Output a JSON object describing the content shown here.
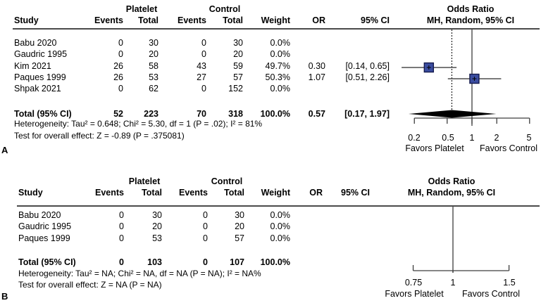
{
  "figure": {
    "panel_a_label": "A",
    "panel_b_label": "B"
  },
  "chart_data": [
    {
      "type": "forest",
      "panel": "A",
      "scale": "log",
      "effect_measure": "Odds Ratio",
      "header": {
        "group_treatment": "Platelet",
        "group_control": "Control",
        "study": "Study",
        "events": "Events",
        "total": "Total",
        "events2": "Events",
        "total2": "Total",
        "weight": "Weight",
        "or": "OR",
        "ci": "95% CI",
        "effect_line1": "Odds Ratio",
        "effect_line2": "MH, Random, 95% CI"
      },
      "rows": [
        {
          "study": "Babu 2020",
          "events_platelet": "0",
          "total_platelet": "30",
          "events_control": "0",
          "total_control": "30",
          "weight": "0.0%",
          "or_text": "",
          "ci_text": "",
          "or": null,
          "ci_low": null,
          "ci_high": null
        },
        {
          "study": "Gaudric 1995",
          "events_platelet": "0",
          "total_platelet": "20",
          "events_control": "0",
          "total_control": "20",
          "weight": "0.0%",
          "or_text": "",
          "ci_text": "",
          "or": null,
          "ci_low": null,
          "ci_high": null
        },
        {
          "study": "Kim 2021",
          "events_platelet": "26",
          "total_platelet": "58",
          "events_control": "43",
          "total_control": "59",
          "weight": "49.7%",
          "or_text": "0.30",
          "ci_text": "[0.14, 0.65]",
          "or": 0.3,
          "ci_low": 0.14,
          "ci_high": 0.65
        },
        {
          "study": "Paques 1999",
          "events_platelet": "26",
          "total_platelet": "53",
          "events_control": "27",
          "total_control": "57",
          "weight": "50.3%",
          "or_text": "1.07",
          "ci_text": "[0.51, 2.26]",
          "or": 1.07,
          "ci_low": 0.51,
          "ci_high": 2.26
        },
        {
          "study": "Shpak 2021",
          "events_platelet": "0",
          "total_platelet": "62",
          "events_control": "0",
          "total_control": "152",
          "weight": "0.0%",
          "or_text": "",
          "ci_text": "",
          "or": null,
          "ci_low": null,
          "ci_high": null
        }
      ],
      "total": {
        "study": "Total (95% CI)",
        "events_platelet": "52",
        "total_platelet": "223",
        "events_control": "70",
        "total_control": "318",
        "weight": "100.0%",
        "or_text": "0.57",
        "ci_text": "[0.17, 1.97]",
        "or": 0.57,
        "ci_low": 0.17,
        "ci_high": 1.97
      },
      "heterogeneity": "Heterogeneity: Tau² = 0.648; Chi² = 5.30, df = 1 (P = .02); I² = 81%",
      "overall_effect": "Test for overall effect: Z = -0.89 (P = .375081)",
      "axis": {
        "ticks": [
          "0.2",
          "0.5",
          "1",
          "2",
          "5"
        ],
        "tick_values": [
          0.2,
          0.5,
          1,
          2,
          5
        ],
        "null_line": 1,
        "pooled_dashed": 0.57,
        "favors_left": "Favors Platelet",
        "favors_right": "Favors Control"
      }
    },
    {
      "type": "forest",
      "panel": "B",
      "scale": "log",
      "effect_measure": "Odds Ratio",
      "header": {
        "group_treatment": "Platelet",
        "group_control": "Control",
        "study": "Study",
        "events": "Events",
        "total": "Total",
        "events2": "Events",
        "total2": "Total",
        "weight": "Weight",
        "or": "OR",
        "ci": "95% CI",
        "effect_line1": "Odds Ratio",
        "effect_line2": "MH, Random, 95% CI"
      },
      "rows": [
        {
          "study": "Babu 2020",
          "events_platelet": "0",
          "total_platelet": "30",
          "events_control": "0",
          "total_control": "30",
          "weight": "0.0%",
          "or_text": "",
          "ci_text": "",
          "or": null,
          "ci_low": null,
          "ci_high": null
        },
        {
          "study": "Gaudric 1995",
          "events_platelet": "0",
          "total_platelet": "20",
          "events_control": "0",
          "total_control": "20",
          "weight": "0.0%",
          "or_text": "",
          "ci_text": "",
          "or": null,
          "ci_low": null,
          "ci_high": null
        },
        {
          "study": "Paques 1999",
          "events_platelet": "0",
          "total_platelet": "53",
          "events_control": "0",
          "total_control": "57",
          "weight": "0.0%",
          "or_text": "",
          "ci_text": "",
          "or": null,
          "ci_low": null,
          "ci_high": null
        }
      ],
      "total": {
        "study": "Total (95% CI)",
        "events_platelet": "0",
        "total_platelet": "103",
        "events_control": "0",
        "total_control": "107",
        "weight": "100.0%",
        "or_text": "",
        "ci_text": "",
        "or": null,
        "ci_low": null,
        "ci_high": null
      },
      "heterogeneity": "Heterogeneity: Tau² = NA; Chi² = NA, df = NA (P = NA); I² = NA%",
      "overall_effect": "Test for overall effect: Z = NA (P = NA)",
      "axis": {
        "ticks": [
          "0.75",
          "1",
          "1.5"
        ],
        "tick_values": [
          0.75,
          1,
          1.5
        ],
        "null_line": 1,
        "pooled_dashed": null,
        "favors_left": "Favors Platelet",
        "favors_right": "Favors Control"
      }
    }
  ]
}
